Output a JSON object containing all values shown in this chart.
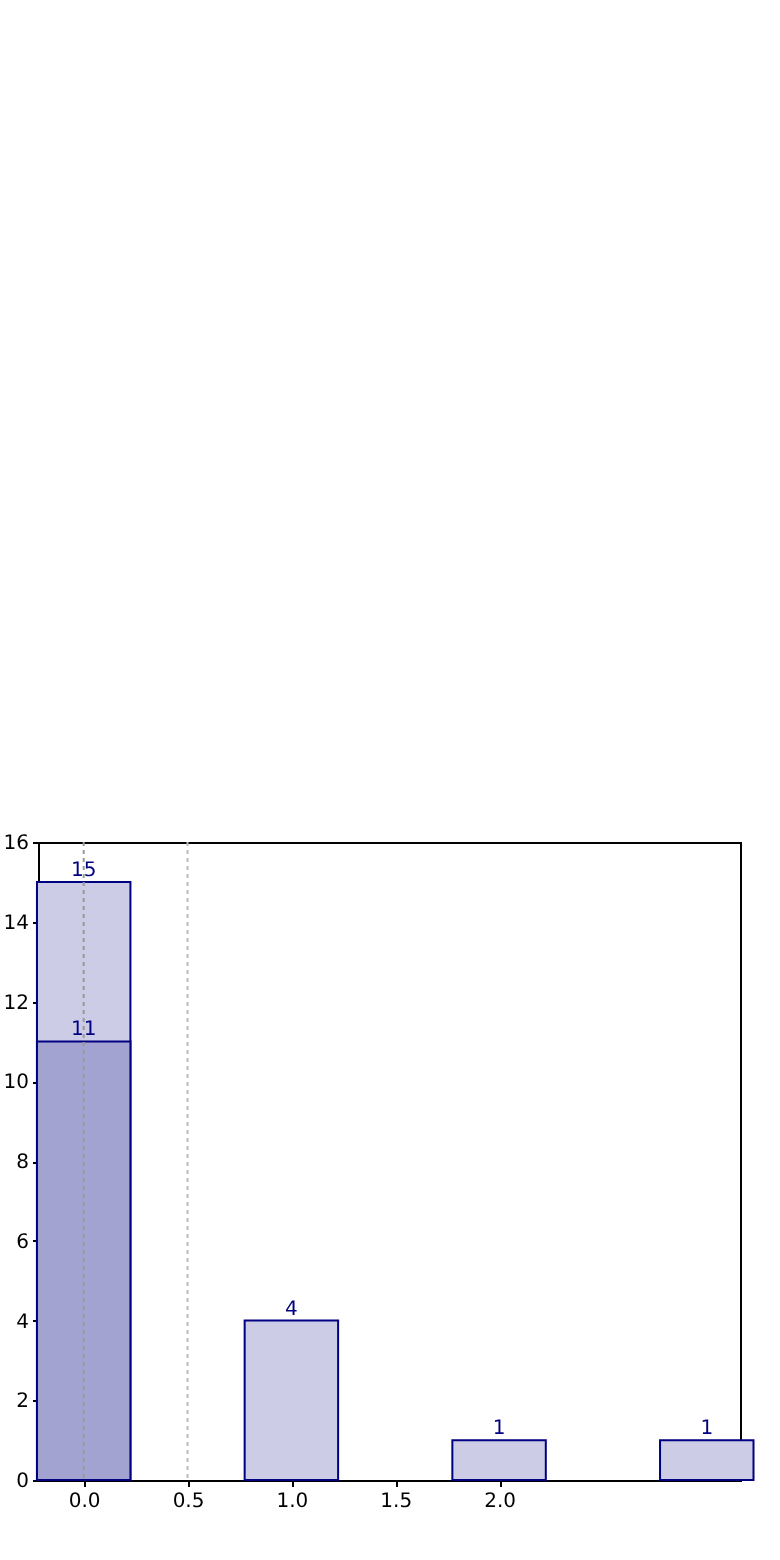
{
  "chart_data": {
    "type": "bar",
    "data_labels": true,
    "grid": false,
    "xlim": [
      -0.22,
      3.16
    ],
    "xticks": [
      {
        "value": 0,
        "label": "0.0"
      },
      {
        "value": 0.5,
        "label": "0.5"
      },
      {
        "value": 1,
        "label": "1.0"
      },
      {
        "value": 1.5,
        "label": "1.5"
      },
      {
        "value": 2,
        "label": "2.0"
      }
    ],
    "ylim": [
      0,
      16
    ],
    "yticks": [
      0,
      2,
      4,
      6,
      8,
      10,
      12,
      14,
      16
    ],
    "series": [
      {
        "color": "#cccce6",
        "x": [
          0,
          1,
          2,
          3
        ],
        "values": [
          15,
          4,
          1,
          1
        ]
      },
      {
        "color": "#a3a3d1",
        "x": [
          0
        ],
        "values": [
          11
        ]
      }
    ],
    "ref_lines": [
      {
        "axis": "x",
        "value": 0,
        "color": "#999999",
        "line_style": "dotted"
      },
      {
        "axis": "x",
        "value": 0.5,
        "color": "#bbbbbb",
        "line_style": "dotted"
      }
    ]
  }
}
